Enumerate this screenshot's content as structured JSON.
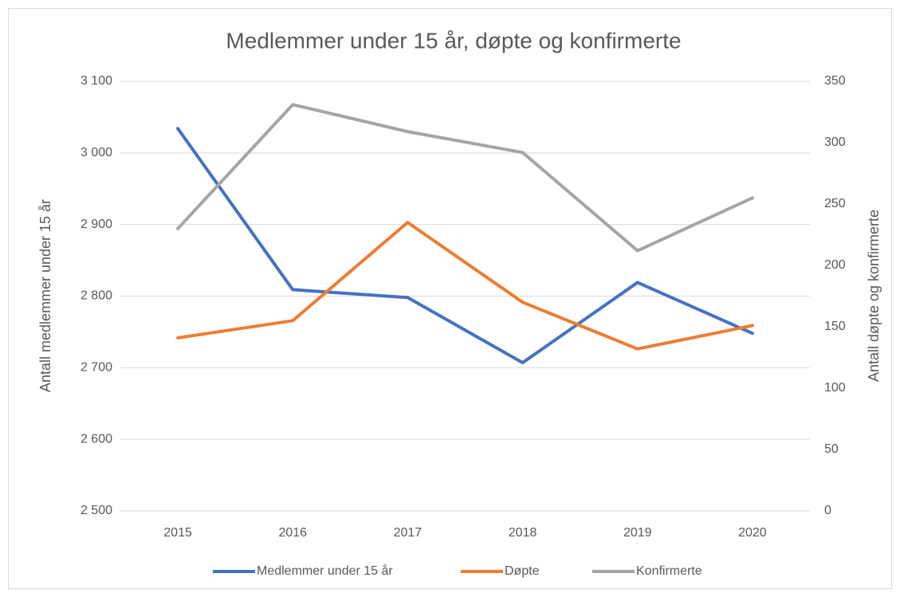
{
  "chart_data": {
    "type": "line",
    "title": "Medlemmer under 15 år, døpte og konfirmerte",
    "categories": [
      "2015",
      "2016",
      "2017",
      "2018",
      "2019",
      "2020"
    ],
    "series": [
      {
        "name": "Medlemmer under 15 år",
        "color": "#4472c4",
        "values": [
          3034,
          2809,
          2798,
          2707,
          2819,
          2748
        ]
      },
      {
        "name": "Døpte",
        "color": "#ed7d31",
        "axis": "y2",
        "values": [
          141,
          155,
          235,
          170,
          132,
          151
        ]
      },
      {
        "name": "Konfirmerte",
        "color": "#a5a5a5",
        "axis": "y2",
        "values": [
          230,
          331,
          309,
          292,
          212,
          255
        ]
      }
    ],
    "ylabel": "Antall medlemmer under 15 år",
    "y2label": "Antall døpte og konfirmerte",
    "ylim": [
      2500,
      3100
    ],
    "yticks": [
      {
        "value": 2500,
        "label": "2 500"
      },
      {
        "value": 2600,
        "label": "2 600"
      },
      {
        "value": 2700,
        "label": "2 700"
      },
      {
        "value": 2800,
        "label": "2 800"
      },
      {
        "value": 2900,
        "label": "2 900"
      },
      {
        "value": 3000,
        "label": "3 000"
      },
      {
        "value": 3100,
        "label": "3 100"
      }
    ],
    "y2lim": [
      0,
      350
    ],
    "y2ticks": [
      0,
      50,
      100,
      150,
      200,
      250,
      300,
      350
    ],
    "grid": true,
    "legend": "bottom"
  }
}
